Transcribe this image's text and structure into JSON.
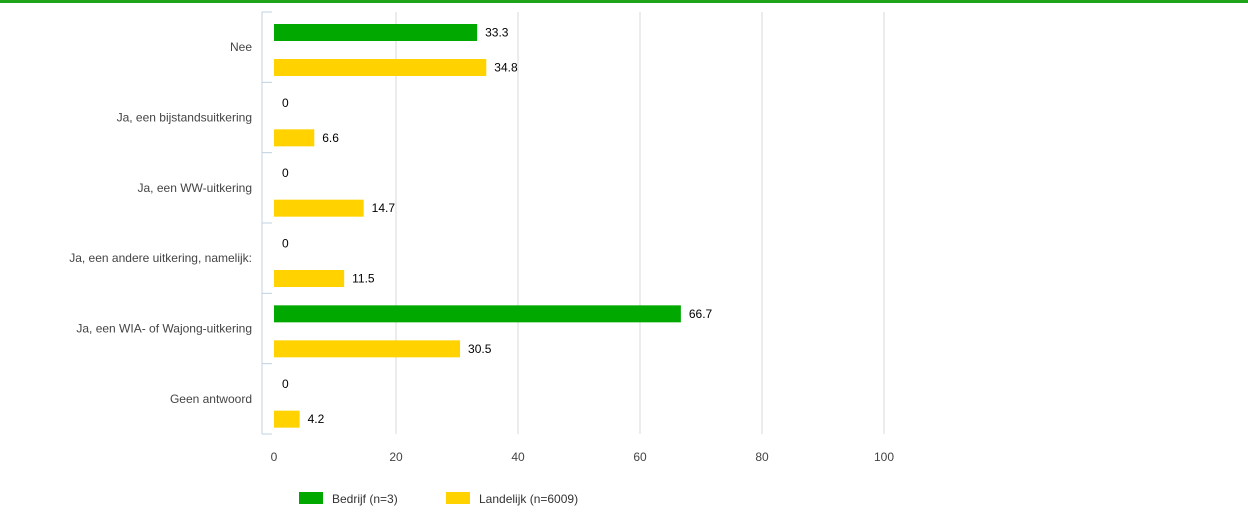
{
  "colors": {
    "accent_line": "#1fa319",
    "series_bedrijf": "#00a800",
    "series_landelijk": "#ffd200",
    "grid": "#d8d8d8",
    "axis": "#c0d0e0"
  },
  "chart_data": {
    "type": "bar",
    "orientation": "horizontal",
    "categories": [
      "Nee",
      "Ja, een bijstandsuitkering",
      "Ja, een WW-uitkering",
      "Ja, een andere uitkering, namelijk:",
      "Ja, een WIA- of Wajong-uitkering",
      "Geen antwoord"
    ],
    "series": [
      {
        "name": "Bedrijf (n=3)",
        "color": "#00a800",
        "values": [
          33.3,
          0,
          0,
          0,
          66.7,
          0
        ]
      },
      {
        "name": "Landelijk (n=6009)",
        "color": "#ffd200",
        "values": [
          34.8,
          6.6,
          14.7,
          11.5,
          30.5,
          4.2
        ]
      }
    ],
    "xlim": [
      0,
      100
    ],
    "xticks": [
      0,
      20,
      40,
      60,
      80,
      100
    ],
    "grid": true,
    "legend_position": "bottom"
  }
}
